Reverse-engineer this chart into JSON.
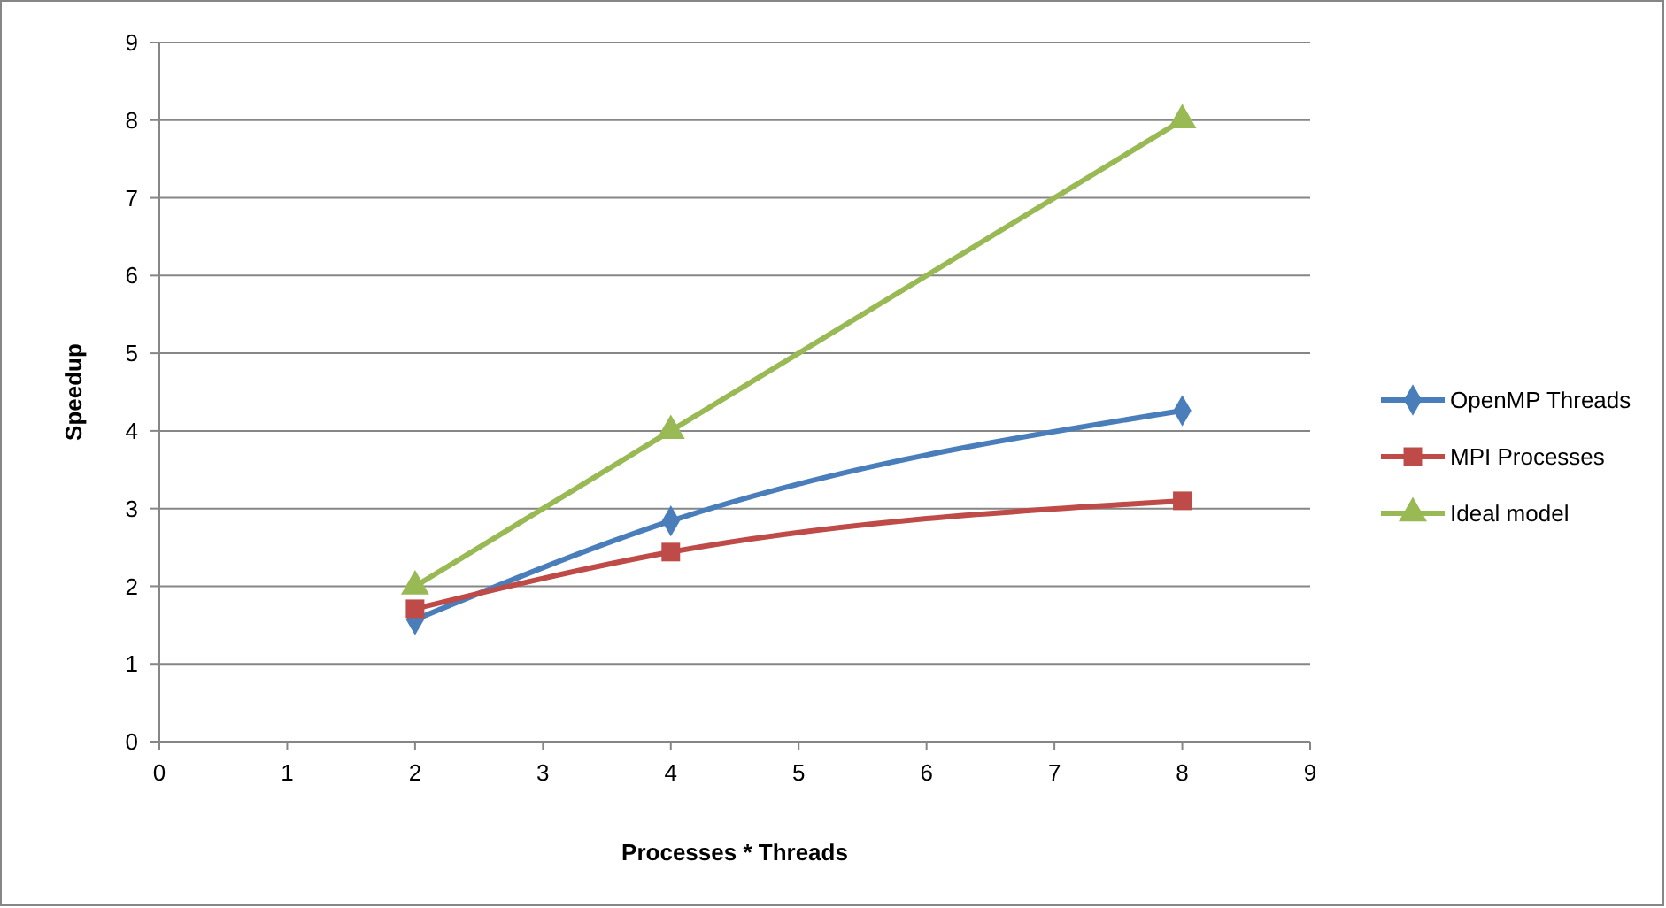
{
  "chart_data": {
    "type": "line",
    "xlabel": "Processes * Threads",
    "ylabel": "Speedup",
    "xlim": [
      0,
      9
    ],
    "xticks": [
      0,
      1,
      2,
      3,
      4,
      5,
      6,
      7,
      8,
      9
    ],
    "ylim": [
      0,
      9
    ],
    "yticks": [
      0,
      1,
      2,
      3,
      4,
      5,
      6,
      7,
      8,
      9
    ],
    "grid": "y",
    "legend": "right",
    "x": [
      2,
      4,
      8
    ],
    "series": [
      {
        "name": "OpenMP Threads",
        "color": "#4a7ebb",
        "marker": "diamond",
        "values": [
          1.57,
          2.84,
          4.26
        ]
      },
      {
        "name": "MPI Processes",
        "color": "#be4b48",
        "marker": "square",
        "values": [
          1.71,
          2.44,
          3.1
        ]
      },
      {
        "name": "Ideal model",
        "color": "#98b954",
        "marker": "triangle",
        "values": [
          2,
          4,
          8
        ]
      }
    ]
  }
}
